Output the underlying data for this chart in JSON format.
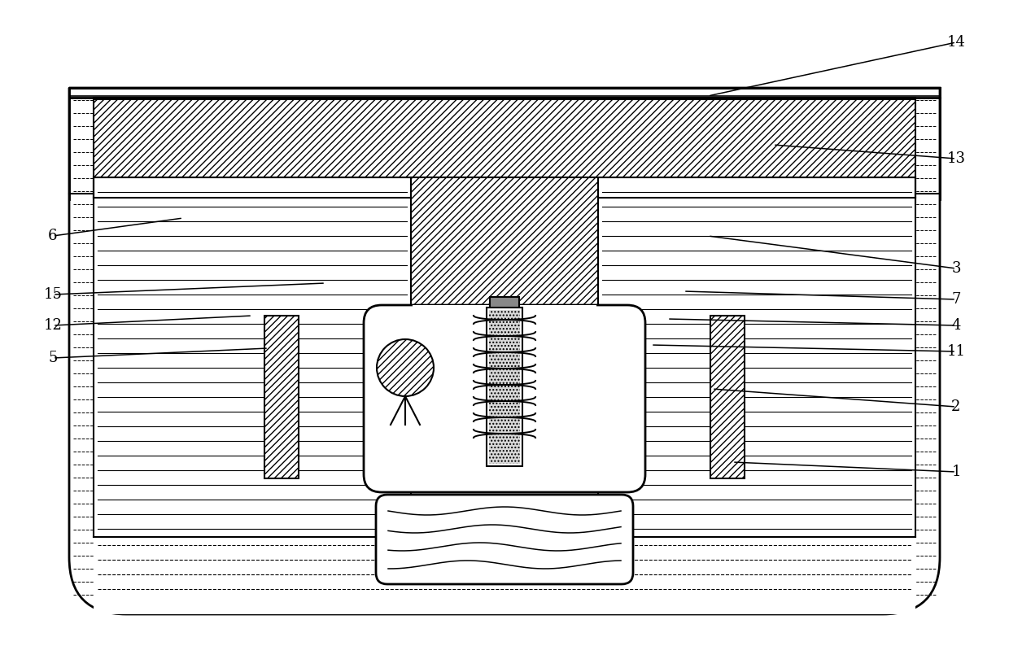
{
  "figure_width": 12.4,
  "figure_height": 8.1,
  "dpi": 100,
  "bg_color": "#ffffff",
  "lc": "#000000",
  "annotations": [
    [
      "14",
      1175,
      52,
      870,
      118
    ],
    [
      "13",
      1175,
      195,
      950,
      178
    ],
    [
      "3",
      1175,
      330,
      870,
      290
    ],
    [
      "7",
      1175,
      368,
      840,
      358
    ],
    [
      "4",
      1175,
      400,
      820,
      392
    ],
    [
      "11",
      1175,
      432,
      800,
      424
    ],
    [
      "2",
      1175,
      500,
      875,
      478
    ],
    [
      "1",
      1175,
      580,
      900,
      568
    ],
    [
      "6",
      65,
      290,
      225,
      268
    ],
    [
      "15",
      65,
      362,
      400,
      348
    ],
    [
      "12",
      65,
      400,
      310,
      388
    ],
    [
      "5",
      65,
      440,
      330,
      428
    ]
  ]
}
